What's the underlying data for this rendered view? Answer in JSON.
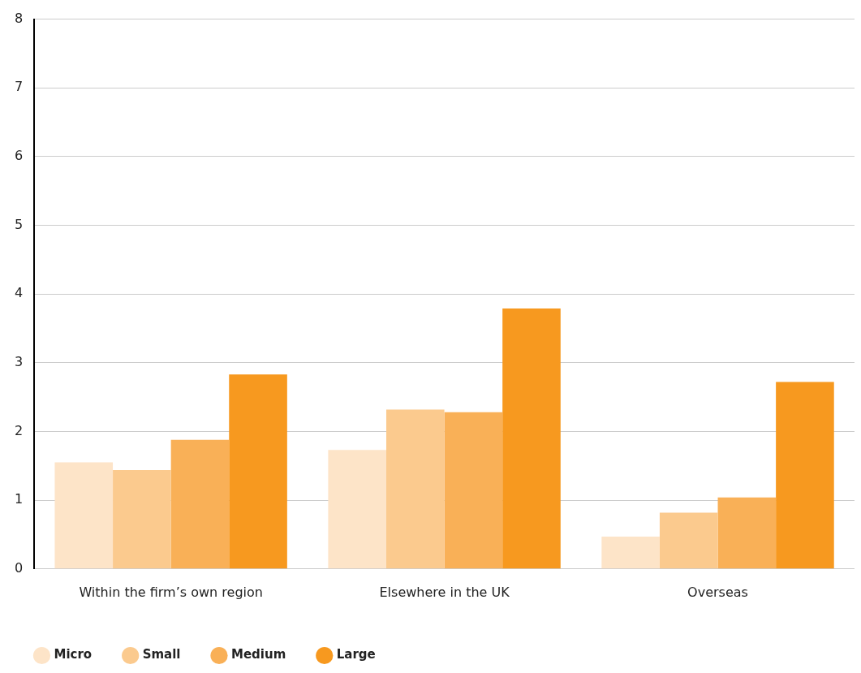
{
  "chart_data": {
    "type": "bar",
    "categories": [
      "Within the firm’s own region",
      "Elsewhere in the UK",
      "Overseas"
    ],
    "series": [
      {
        "name": "Micro",
        "color": "#fde4c8",
        "values": [
          1.55,
          1.73,
          0.47
        ]
      },
      {
        "name": "Small",
        "color": "#fbca8e",
        "values": [
          1.44,
          2.32,
          0.82
        ]
      },
      {
        "name": "Medium",
        "color": "#f9b057",
        "values": [
          1.88,
          2.28,
          1.04
        ]
      },
      {
        "name": "Large",
        "color": "#f7991f",
        "values": [
          2.83,
          3.79,
          2.72
        ]
      }
    ],
    "ylim": [
      0,
      8
    ],
    "yticks": [
      0,
      1,
      2,
      3,
      4,
      5,
      6,
      7,
      8
    ],
    "grid": "y",
    "legend": "bottom left"
  }
}
